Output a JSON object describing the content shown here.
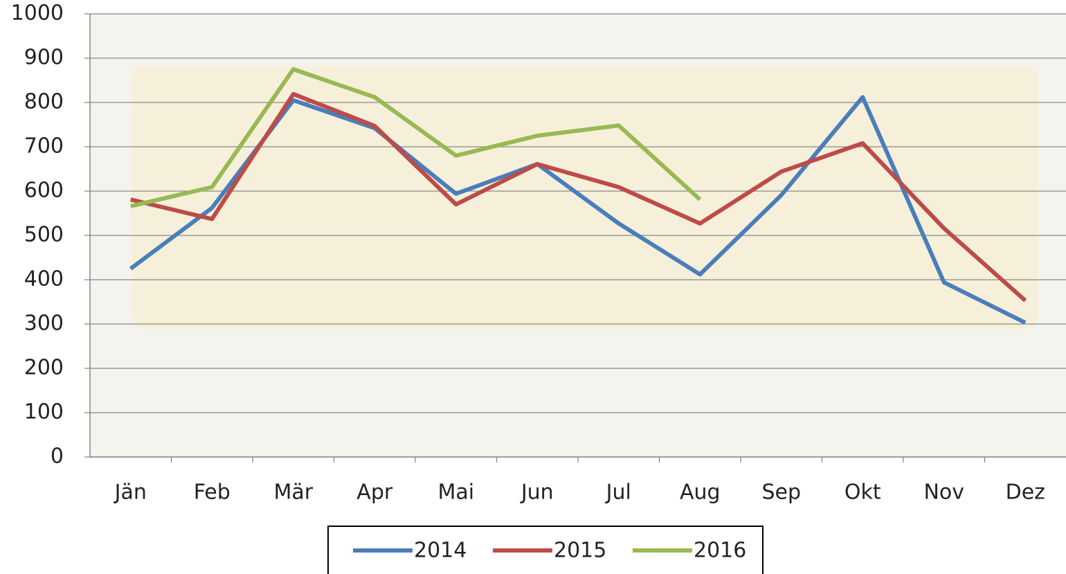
{
  "chart_data": {
    "type": "line",
    "categories": [
      "Jän",
      "Feb",
      "Mär",
      "Apr",
      "Mai",
      "Jun",
      "Jul",
      "Aug",
      "Sep",
      "Okt",
      "Nov",
      "Dez"
    ],
    "series": [
      {
        "name": "2014",
        "color": "#4a7ebb",
        "values": [
          425,
          562,
          805,
          742,
          594,
          661,
          527,
          412,
          591,
          812,
          394,
          303
        ]
      },
      {
        "name": "2015",
        "color": "#be4b48",
        "values": [
          581,
          537,
          819,
          747,
          570,
          661,
          609,
          527,
          644,
          708,
          516,
          353
        ]
      },
      {
        "name": "2016",
        "color": "#98b954",
        "values": [
          566,
          609,
          875,
          812,
          680,
          725,
          748,
          581,
          null,
          null,
          null,
          null
        ]
      }
    ],
    "ylim": [
      0,
      1000
    ],
    "yticks": [
      0,
      100,
      200,
      300,
      400,
      500,
      600,
      700,
      800,
      900,
      1000
    ],
    "grid": true
  }
}
